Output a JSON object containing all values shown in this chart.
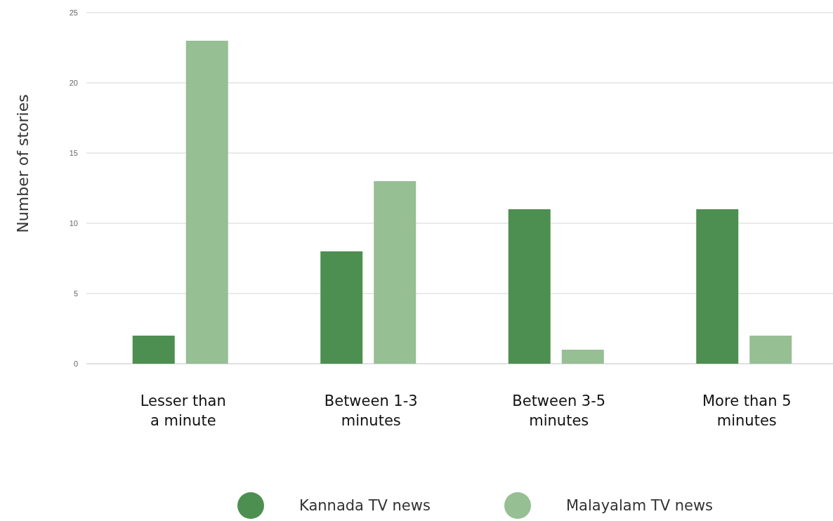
{
  "chart_data": {
    "type": "bar",
    "ylabel": "Number of stories",
    "categories": [
      "Lesser than a minute",
      "Between 1-3 minutes",
      "Between 3-5 minutes",
      "More than 5 minutes"
    ],
    "series": [
      {
        "name": "Kannada TV news",
        "color": "#4d8f50",
        "values": [
          2,
          8,
          11,
          11
        ]
      },
      {
        "name": "Malayalam TV news",
        "color": "#96bf94",
        "values": [
          23,
          13,
          1,
          2
        ]
      }
    ],
    "ylim": [
      0,
      25
    ],
    "yticks": [
      0,
      5,
      10,
      15,
      20,
      25
    ],
    "grid": "y",
    "legend": "bottom"
  }
}
